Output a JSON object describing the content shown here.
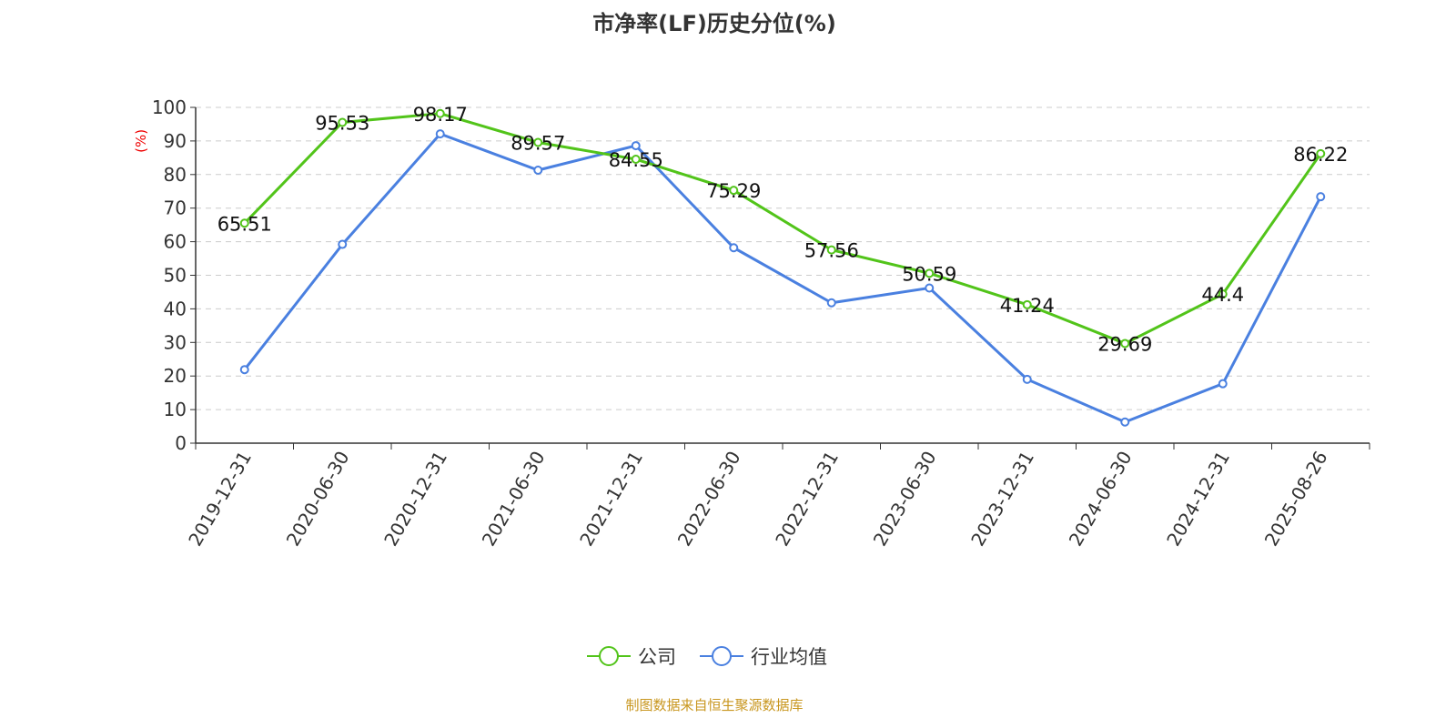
{
  "chart_data": {
    "type": "line",
    "title": "市净率(LF)历史分位(%)",
    "ylabel": "(%)",
    "ylim": [
      0,
      100
    ],
    "yticks": [
      0,
      10,
      20,
      30,
      40,
      50,
      60,
      70,
      80,
      90,
      100
    ],
    "grid": true,
    "legend_position": "bottom",
    "categories": [
      "2019-12-31",
      "2020-06-30",
      "2020-12-31",
      "2021-06-30",
      "2021-12-31",
      "2022-06-30",
      "2022-12-31",
      "2023-06-30",
      "2023-12-31",
      "2024-06-30",
      "2024-12-31",
      "2025-08-26"
    ],
    "series": [
      {
        "name": "公司",
        "color": "#52c41a",
        "labels": true,
        "values": [
          65.51,
          95.53,
          98.17,
          89.57,
          84.55,
          75.29,
          57.56,
          50.59,
          41.24,
          29.69,
          44.4,
          86.22
        ]
      },
      {
        "name": "行业均值",
        "color": "#4a80e0",
        "labels": false,
        "values": [
          21.9,
          59.2,
          92.1,
          81.3,
          88.6,
          58.2,
          41.8,
          46.2,
          19.0,
          6.3,
          17.7,
          73.4
        ]
      }
    ]
  },
  "source": "制图数据来自恒生聚源数据库"
}
